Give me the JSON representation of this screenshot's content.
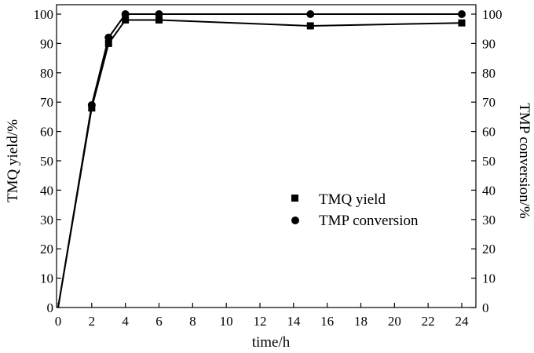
{
  "chart_data": {
    "type": "line",
    "title": "",
    "xlabel": "time/h",
    "ylabel_left": "TMQ yield/%",
    "ylabel_right": "TMP conversion/%",
    "xlim": [
      0,
      24
    ],
    "ylim": [
      0,
      100
    ],
    "xticks": [
      0,
      2,
      4,
      6,
      8,
      10,
      12,
      14,
      16,
      18,
      20,
      22,
      24
    ],
    "yticks": [
      0,
      10,
      20,
      30,
      40,
      50,
      60,
      70,
      80,
      90,
      100
    ],
    "grid": false,
    "legend_position": "center-right",
    "series": [
      {
        "name": "TMQ yield",
        "marker": "square",
        "color": "#000000",
        "x": [
          0,
          2,
          3,
          4,
          6,
          15,
          24
        ],
        "y": [
          0,
          68,
          90,
          98,
          98,
          96,
          97
        ]
      },
      {
        "name": "TMP conversion",
        "marker": "circle",
        "color": "#000000",
        "x": [
          0,
          2,
          3,
          4,
          6,
          15,
          24
        ],
        "y": [
          0,
          69,
          92,
          100,
          100,
          100,
          100
        ]
      }
    ]
  }
}
